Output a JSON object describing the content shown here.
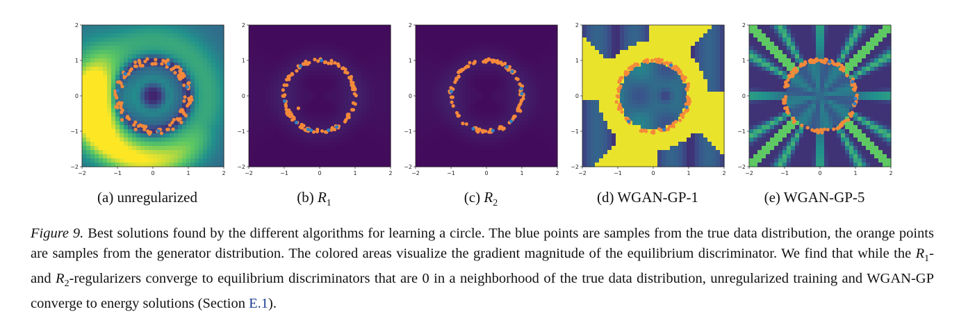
{
  "panels": [
    {
      "id": "a",
      "label": "(a) unregularized",
      "style": "viridis-halo",
      "orange_points": 120,
      "blue_points": 6,
      "outlier": null
    },
    {
      "id": "b",
      "label_prefix": "(b) ",
      "label_math": "R",
      "label_sub": "1",
      "style": "dark-flat",
      "orange_points": 110,
      "blue_points": 8,
      "outlier": [
        -0.6,
        -0.35
      ]
    },
    {
      "id": "c",
      "label_prefix": "(c) ",
      "label_math": "R",
      "label_sub": "2",
      "style": "dark-flat",
      "orange_points": 110,
      "blue_points": 8,
      "outlier": null
    },
    {
      "id": "d",
      "label": "(d) WGAN-GP-1",
      "style": "yellow-blocks",
      "orange_points": 130,
      "blue_points": 4,
      "outlier": null
    },
    {
      "id": "e",
      "label": "(e) WGAN-GP-5",
      "style": "rays",
      "orange_points": 130,
      "blue_points": 4,
      "outlier": null
    }
  ],
  "axes": {
    "x_ticks": [
      "−2",
      "−1",
      "0",
      "1",
      "2"
    ],
    "y_ticks": [
      "2",
      "1",
      "0",
      "−1",
      "−2"
    ]
  },
  "colors": {
    "orange": "#f5893b",
    "blue": "#2f7fc1",
    "viridis_dark": "#3b1a5c",
    "viridis_mid": "#2e8b8b",
    "viridis_yellow": "#f4e84a"
  },
  "caption": {
    "fig_label": "Figure 9.",
    "p1": " Best solutions found by the different algorithms for learning a circle. The blue points are samples from the true data distribution, the orange points are samples from the generator distribution. The colored areas visualize the gradient magnitude of the equilibrium discriminator. We find that while the ",
    "r1": "R",
    "r1_sub": "1",
    "p2": "- and ",
    "r2": "R",
    "r2_sub": "2",
    "p3": "-regularizers converge to equilibrium discriminators that are 0 in a neighborhood of the true data distribution, unregularized training and WGAN-GP converge to energy solutions (Section ",
    "ref": "E.1",
    "p4": ")."
  }
}
